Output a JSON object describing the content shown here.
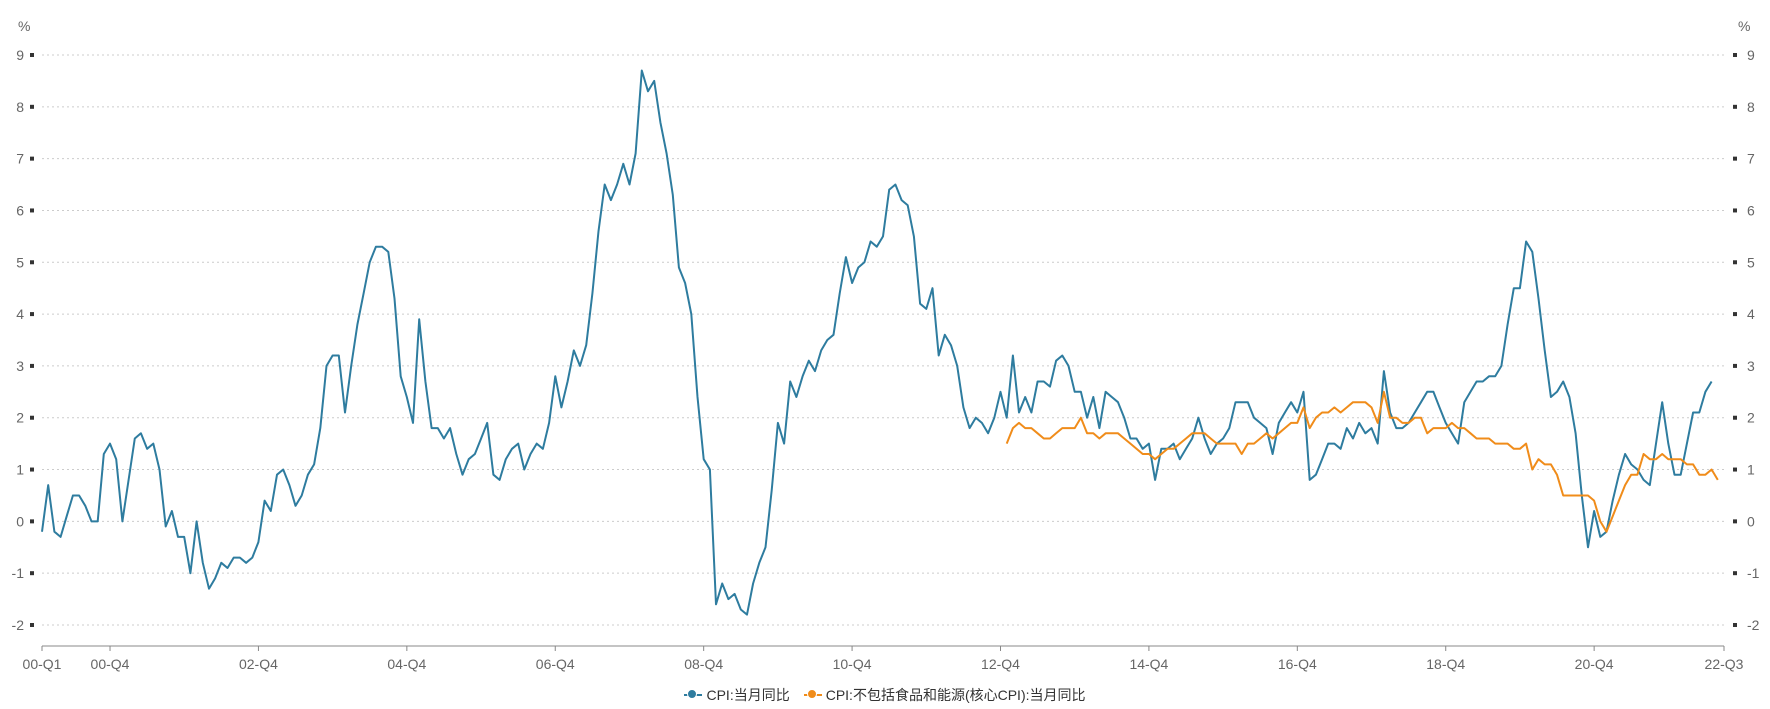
{
  "chart_data": {
    "type": "line",
    "unit_left": "%",
    "unit_right": "%",
    "ylim": [
      -2,
      9
    ],
    "yticks": [
      "9",
      "8",
      "7",
      "6",
      "5",
      "4",
      "3",
      "2",
      "1",
      "0",
      "-1",
      "-2"
    ],
    "xticks": [
      "00-Q1",
      "00-Q4",
      "02-Q4",
      "04-Q4",
      "06-Q4",
      "08-Q4",
      "10-Q4",
      "12-Q4",
      "14-Q4",
      "16-Q4",
      "18-Q4",
      "20-Q4",
      "22-Q3"
    ],
    "x_range": [
      "2000-01",
      "2022-09"
    ],
    "grid": true,
    "legend_position": "bottom",
    "series": [
      {
        "name": "CPI:当月同比",
        "color": "#2e7c9f",
        "start": "2000-01",
        "values": [
          -0.2,
          0.7,
          -0.2,
          -0.3,
          0.1,
          0.5,
          0.5,
          0.3,
          0.0,
          0.0,
          1.3,
          1.5,
          1.2,
          0.0,
          0.8,
          1.6,
          1.7,
          1.4,
          1.5,
          1.0,
          -0.1,
          0.2,
          -0.3,
          -0.3,
          -1.0,
          0.0,
          -0.8,
          -1.3,
          -1.1,
          -0.8,
          -0.9,
          -0.7,
          -0.7,
          -0.8,
          -0.7,
          -0.4,
          0.4,
          0.2,
          0.9,
          1.0,
          0.7,
          0.3,
          0.5,
          0.9,
          1.1,
          1.8,
          3.0,
          3.2,
          3.2,
          2.1,
          3.0,
          3.8,
          4.4,
          5.0,
          5.3,
          5.3,
          5.2,
          4.3,
          2.8,
          2.4,
          1.9,
          3.9,
          2.7,
          1.8,
          1.8,
          1.6,
          1.8,
          1.3,
          0.9,
          1.2,
          1.3,
          1.6,
          1.9,
          0.9,
          0.8,
          1.2,
          1.4,
          1.5,
          1.0,
          1.3,
          1.5,
          1.4,
          1.9,
          2.8,
          2.2,
          2.7,
          3.3,
          3.0,
          3.4,
          4.4,
          5.6,
          6.5,
          6.2,
          6.5,
          6.9,
          6.5,
          7.1,
          8.7,
          8.3,
          8.5,
          7.7,
          7.1,
          6.3,
          4.9,
          4.6,
          4.0,
          2.4,
          1.2,
          1.0,
          -1.6,
          -1.2,
          -1.5,
          -1.4,
          -1.7,
          -1.8,
          -1.2,
          -0.8,
          -0.5,
          0.6,
          1.9,
          1.5,
          2.7,
          2.4,
          2.8,
          3.1,
          2.9,
          3.3,
          3.5,
          3.6,
          4.4,
          5.1,
          4.6,
          4.9,
          5.0,
          5.4,
          5.3,
          5.5,
          6.4,
          6.5,
          6.2,
          6.1,
          5.5,
          4.2,
          4.1,
          4.5,
          3.2,
          3.6,
          3.4,
          3.0,
          2.2,
          1.8,
          2.0,
          1.9,
          1.7,
          2.0,
          2.5,
          2.0,
          3.2,
          2.1,
          2.4,
          2.1,
          2.7,
          2.7,
          2.6,
          3.1,
          3.2,
          3.0,
          2.5,
          2.5,
          2.0,
          2.4,
          1.8,
          2.5,
          2.4,
          2.3,
          2.0,
          1.6,
          1.6,
          1.4,
          1.5,
          0.8,
          1.4,
          1.4,
          1.5,
          1.2,
          1.4,
          1.6,
          2.0,
          1.6,
          1.3,
          1.5,
          1.6,
          1.8,
          2.3,
          2.3,
          2.3,
          2.0,
          1.9,
          1.8,
          1.3,
          1.9,
          2.1,
          2.3,
          2.1,
          2.5,
          0.8,
          0.9,
          1.2,
          1.5,
          1.5,
          1.4,
          1.8,
          1.6,
          1.9,
          1.7,
          1.8,
          1.5,
          2.9,
          2.1,
          1.8,
          1.8,
          1.9,
          2.1,
          2.3,
          2.5,
          2.5,
          2.2,
          1.9,
          1.7,
          1.5,
          2.3,
          2.5,
          2.7,
          2.7,
          2.8,
          2.8,
          3.0,
          3.8,
          4.5,
          4.5,
          5.4,
          5.2,
          4.3,
          3.3,
          2.4,
          2.5,
          2.7,
          2.4,
          1.7,
          0.5,
          -0.5,
          0.2,
          -0.3,
          -0.2,
          0.4,
          0.9,
          1.3,
          1.1,
          1.0,
          0.8,
          0.7,
          1.5,
          2.3,
          1.5,
          0.9,
          0.9,
          1.5,
          2.1,
          2.1,
          2.5,
          2.7
        ]
      },
      {
        "name": "CPI:不包括食品和能源(核心CPI):当月同比",
        "color": "#f08c1a",
        "start": "2013-01",
        "values": [
          1.5,
          1.8,
          1.9,
          1.8,
          1.8,
          1.7,
          1.6,
          1.6,
          1.7,
          1.8,
          1.8,
          1.8,
          2.0,
          1.7,
          1.7,
          1.6,
          1.7,
          1.7,
          1.7,
          1.6,
          1.5,
          1.4,
          1.3,
          1.3,
          1.2,
          1.3,
          1.4,
          1.4,
          1.5,
          1.6,
          1.7,
          1.7,
          1.7,
          1.6,
          1.5,
          1.5,
          1.5,
          1.5,
          1.3,
          1.5,
          1.5,
          1.6,
          1.7,
          1.6,
          1.7,
          1.8,
          1.9,
          1.9,
          2.2,
          1.8,
          2.0,
          2.1,
          2.1,
          2.2,
          2.1,
          2.2,
          2.3,
          2.3,
          2.3,
          2.2,
          1.9,
          2.5,
          2.0,
          2.0,
          1.9,
          1.9,
          2.0,
          2.0,
          1.7,
          1.8,
          1.8,
          1.8,
          1.9,
          1.8,
          1.8,
          1.7,
          1.6,
          1.6,
          1.6,
          1.5,
          1.5,
          1.5,
          1.4,
          1.4,
          1.5,
          1.0,
          1.2,
          1.1,
          1.1,
          0.9,
          0.5,
          0.5,
          0.5,
          0.5,
          0.5,
          0.4,
          0.0,
          -0.2,
          0.1,
          0.4,
          0.7,
          0.9,
          0.9,
          1.3,
          1.2,
          1.2,
          1.3,
          1.2,
          1.2,
          1.2,
          1.1,
          1.1,
          0.9,
          0.9,
          1.0,
          0.8
        ]
      }
    ]
  },
  "legend": {
    "items": [
      {
        "label": "CPI:当月同比",
        "color": "#2e7c9f"
      },
      {
        "label": "CPI:不包括食品和能源(核心CPI):当月同比",
        "color": "#f08c1a"
      }
    ]
  }
}
